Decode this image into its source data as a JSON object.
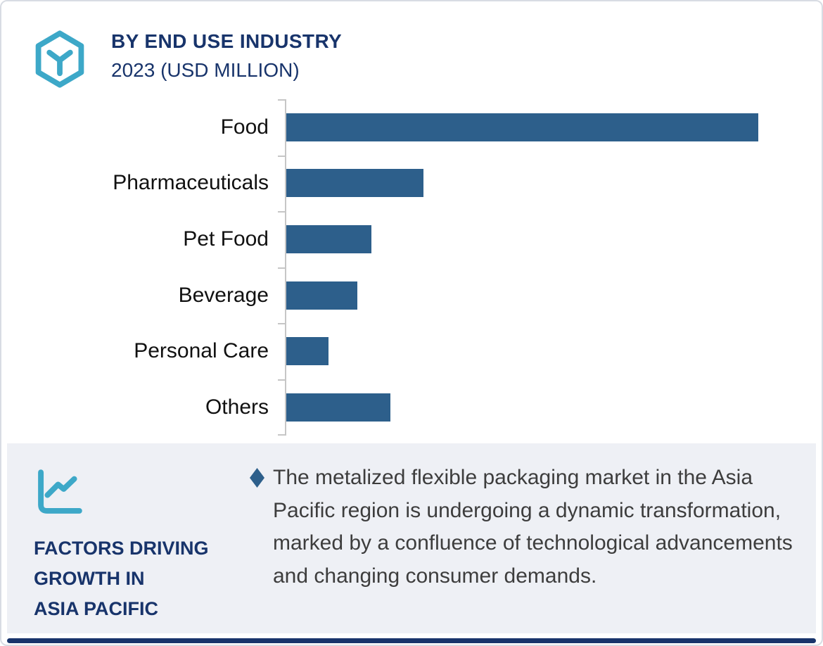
{
  "colors": {
    "accent_teal": "#3da8c8",
    "navy": "#18346b",
    "bar_blue": "#2d5f8b",
    "panel_gray": "#eef0f5",
    "body_text": "#3d3d3d",
    "axis_gray": "#c6c6c6"
  },
  "header": {
    "logo_icon": "hexagon-y-logo-icon",
    "title": "BY END USE INDUSTRY",
    "subtitle": "2023 (USD MILLION)"
  },
  "chart_data": {
    "type": "bar",
    "orientation": "horizontal",
    "title": "BY END USE INDUSTRY",
    "subtitle": "2023 (USD MILLION)",
    "categories": [
      "Food",
      "Pharmaceuticals",
      "Pet Food",
      "Beverage",
      "Personal Care",
      "Others"
    ],
    "values": [
      100,
      29,
      18,
      15,
      9,
      22
    ],
    "values_note": "relative bar lengths as % of longest bar; chart shows no numeric axis or data labels",
    "xlabel": "",
    "ylabel": "",
    "xlim": [
      0,
      107
    ],
    "grid": false,
    "legend": false,
    "bar_color": "#2d5f8b"
  },
  "footer": {
    "icon": "line-chart-icon",
    "heading_lines": [
      "FACTORS DRIVING",
      "GROWTH IN",
      "ASIA PACIFIC"
    ],
    "bullet": {
      "marker": "diamond",
      "text": "The metalized flexible packaging market in the Asia Pacific region is undergoing a dynamic transformation, marked by a confluence of technological advancements and changing consumer demands."
    }
  }
}
